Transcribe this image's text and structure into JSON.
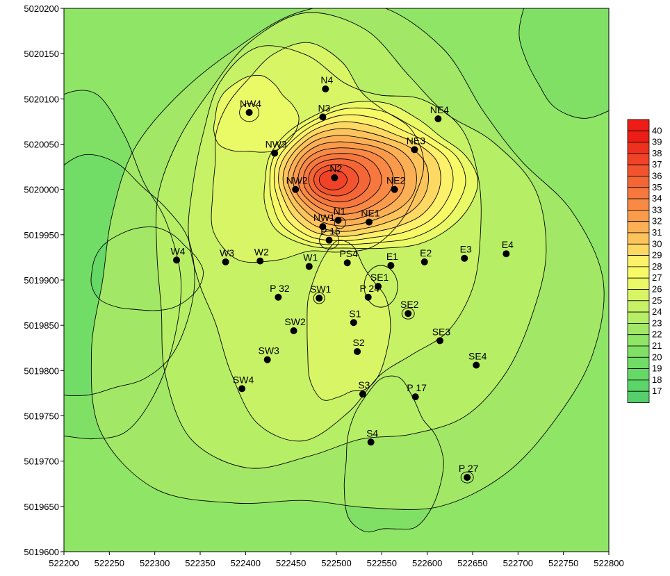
{
  "chart_data": {
    "type": "heatmap",
    "subtype": "contour map",
    "title": "",
    "xlabel": "",
    "ylabel": "",
    "xlim": [
      522200,
      522800
    ],
    "ylim": [
      5019600,
      5020200
    ],
    "x_ticks": [
      522200,
      522250,
      522300,
      522350,
      522400,
      522450,
      522500,
      522550,
      522600,
      522650,
      522700,
      522750,
      522800
    ],
    "y_ticks": [
      5019600,
      5019650,
      5019700,
      5019750,
      5019800,
      5019850,
      5019900,
      5019950,
      5020000,
      5020050,
      5020100,
      5020150,
      5020200
    ],
    "grid": false,
    "legend_position": "right",
    "colorbar": {
      "min": 17,
      "max": 40,
      "ticks": [
        17,
        18,
        19,
        20,
        21,
        22,
        23,
        24,
        25,
        26,
        27,
        28,
        29,
        30,
        31,
        32,
        33,
        34,
        35,
        36,
        37,
        38,
        39,
        40
      ],
      "colors": {
        "17": "#55cf6b",
        "18": "#5bd46a",
        "19": "#65d866",
        "20": "#72dd66",
        "21": "#80e066",
        "22": "#8fe566",
        "23": "#a2e866",
        "24": "#b6ee66",
        "25": "#c7f266",
        "26": "#d8f566",
        "27": "#eaf966",
        "28": "#f7fa66",
        "29": "#fdf06a",
        "30": "#fdd862",
        "31": "#fdc45c",
        "32": "#fcb055",
        "33": "#fa9b4c",
        "34": "#f88a45",
        "35": "#f6783e",
        "36": "#f46636",
        "37": "#f2542e",
        "38": "#f04226",
        "39": "#ee301e",
        "40": "#ec1d16"
      }
    },
    "points": [
      {
        "name": "N4",
        "x": 522488,
        "y": 5020111
      },
      {
        "name": "N3",
        "x": 522485,
        "y": 5020080
      },
      {
        "name": "NW4",
        "x": 522404,
        "y": 5020085
      },
      {
        "name": "NE4",
        "x": 522612,
        "y": 5020078
      },
      {
        "name": "NW3",
        "x": 522432,
        "y": 5020040
      },
      {
        "name": "NE3",
        "x": 522586,
        "y": 5020044
      },
      {
        "name": "N2",
        "x": 522498,
        "y": 5020013
      },
      {
        "name": "NE2",
        "x": 522564,
        "y": 5020000
      },
      {
        "name": "NW2",
        "x": 522455,
        "y": 5020000
      },
      {
        "name": "N1",
        "x": 522502,
        "y": 5019966
      },
      {
        "name": "NE1",
        "x": 522536,
        "y": 5019964
      },
      {
        "name": "NW1",
        "x": 522485,
        "y": 5019959
      },
      {
        "name": "P 16",
        "x": 522492,
        "y": 5019944
      },
      {
        "name": "W4",
        "x": 522324,
        "y": 5019922
      },
      {
        "name": "W3",
        "x": 522378,
        "y": 5019920
      },
      {
        "name": "W2",
        "x": 522416,
        "y": 5019921
      },
      {
        "name": "W1",
        "x": 522470,
        "y": 5019915
      },
      {
        "name": "PS4",
        "x": 522512,
        "y": 5019919
      },
      {
        "name": "E1",
        "x": 522560,
        "y": 5019916
      },
      {
        "name": "E2",
        "x": 522597,
        "y": 5019920
      },
      {
        "name": "E3",
        "x": 522641,
        "y": 5019924
      },
      {
        "name": "E4",
        "x": 522687,
        "y": 5019929
      },
      {
        "name": "SE1",
        "x": 522546,
        "y": 5019893
      },
      {
        "name": "P 32",
        "x": 522436,
        "y": 5019881
      },
      {
        "name": "SW1",
        "x": 522481,
        "y": 5019880
      },
      {
        "name": "P 24",
        "x": 522535,
        "y": 5019881
      },
      {
        "name": "SE2",
        "x": 522579,
        "y": 5019863
      },
      {
        "name": "S1",
        "x": 522519,
        "y": 5019853
      },
      {
        "name": "SW2",
        "x": 522453,
        "y": 5019844
      },
      {
        "name": "SE3",
        "x": 522614,
        "y": 5019833
      },
      {
        "name": "S2",
        "x": 522523,
        "y": 5019821
      },
      {
        "name": "SW3",
        "x": 522424,
        "y": 5019812
      },
      {
        "name": "SE4",
        "x": 522654,
        "y": 5019806
      },
      {
        "name": "SW4",
        "x": 522396,
        "y": 5019780
      },
      {
        "name": "S3",
        "x": 522529,
        "y": 5019774
      },
      {
        "name": "P 17",
        "x": 522587,
        "y": 5019771
      },
      {
        "name": "S4",
        "x": 522538,
        "y": 5019721
      },
      {
        "name": "P 27",
        "x": 522644,
        "y": 5019682
      }
    ]
  }
}
